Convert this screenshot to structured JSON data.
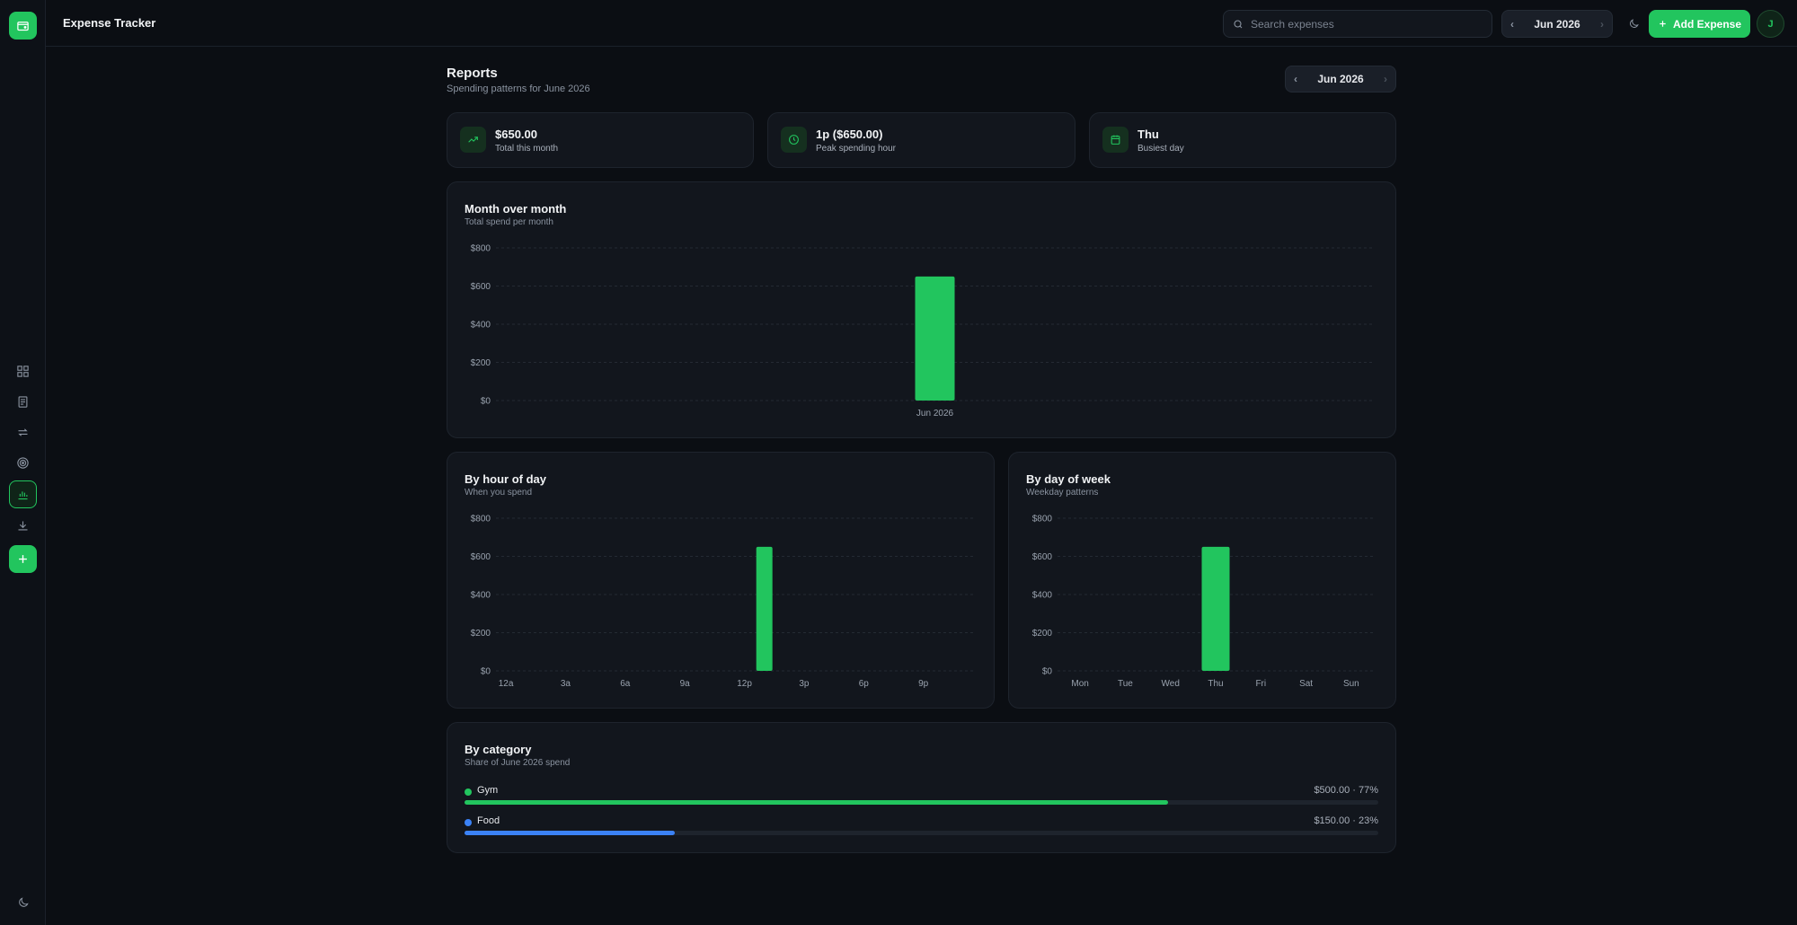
{
  "app": {
    "title": "Expense Tracker"
  },
  "search": {
    "placeholder": "Search expenses"
  },
  "header": {
    "month_label": "Jun 2026",
    "add_label": "Add Expense",
    "avatar_initial": "J"
  },
  "page": {
    "title": "Reports",
    "subtitle": "Spending patterns for June 2026",
    "month_label": "Jun 2026"
  },
  "stats": [
    {
      "value": "$650.00",
      "label": "Total this month",
      "icon": "trending-up-icon"
    },
    {
      "value": "1p ($650.00)",
      "label": "Peak spending hour",
      "icon": "clock-icon"
    },
    {
      "value": "Thu",
      "label": "Busiest day",
      "icon": "calendar-icon"
    }
  ],
  "sidebar": {
    "items": [
      {
        "icon": "dashboard-icon"
      },
      {
        "icon": "receipt-icon"
      },
      {
        "icon": "recurring-icon"
      },
      {
        "icon": "target-icon"
      },
      {
        "icon": "bar-chart-icon",
        "active": true
      },
      {
        "icon": "download-icon"
      },
      {
        "icon": "plus-icon"
      }
    ],
    "bottom_icon": "moon-icon"
  },
  "colors": {
    "accent": "#22c55e",
    "food": "#3b82f6"
  },
  "chart_data": [
    {
      "type": "bar",
      "title": "Month over month",
      "subtitle": "Total spend per month",
      "categories": [
        "Jun 2026"
      ],
      "values": [
        650
      ],
      "y_ticks": [
        "$0",
        "$200",
        "$400",
        "$600",
        "$800"
      ],
      "ylim": [
        0,
        800
      ],
      "grid": true
    },
    {
      "type": "bar",
      "title": "By hour of day",
      "subtitle": "When you spend",
      "x_tick_labels": [
        "12a",
        "3a",
        "6a",
        "9a",
        "12p",
        "3p",
        "6p",
        "9p"
      ],
      "x": [
        0,
        1,
        2,
        3,
        4,
        5,
        6,
        7,
        8,
        9,
        10,
        11,
        12,
        13,
        14,
        15,
        16,
        17,
        18,
        19,
        20,
        21,
        22,
        23
      ],
      "values": [
        0,
        0,
        0,
        0,
        0,
        0,
        0,
        0,
        0,
        0,
        0,
        0,
        0,
        650,
        0,
        0,
        0,
        0,
        0,
        0,
        0,
        0,
        0,
        0
      ],
      "y_ticks": [
        "$0",
        "$200",
        "$400",
        "$600",
        "$800"
      ],
      "ylim": [
        0,
        800
      ],
      "grid": true
    },
    {
      "type": "bar",
      "title": "By day of week",
      "subtitle": "Weekday patterns",
      "categories": [
        "Mon",
        "Tue",
        "Wed",
        "Thu",
        "Fri",
        "Sat",
        "Sun"
      ],
      "values": [
        0,
        0,
        0,
        650,
        0,
        0,
        0
      ],
      "y_ticks": [
        "$0",
        "$200",
        "$400",
        "$600",
        "$800"
      ],
      "ylim": [
        0,
        800
      ],
      "grid": true
    }
  ],
  "category": {
    "title": "By category",
    "subtitle": "Share of June 2026 spend",
    "items": [
      {
        "name": "Gym",
        "amount": "$500.00 · 77%",
        "share": 0.77,
        "color": "#22c55e"
      },
      {
        "name": "Food",
        "amount": "$150.00 · 23%",
        "share": 0.23,
        "color": "#3b82f6"
      }
    ]
  }
}
